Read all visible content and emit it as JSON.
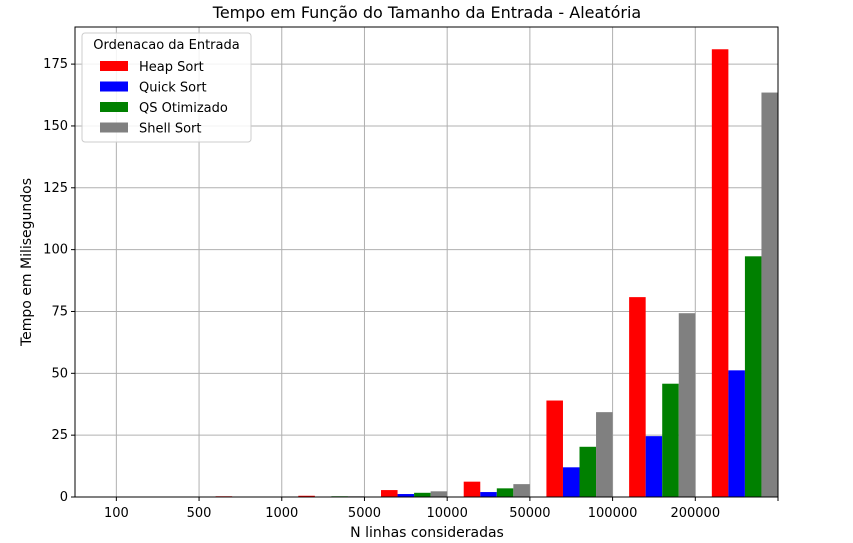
{
  "chart_data": {
    "type": "bar",
    "title": "Tempo em Função do Tamanho da Entrada - Aleatória",
    "xlabel": "N linhas consideradas",
    "ylabel": "Tempo em Milisegundos",
    "categories": [
      "100",
      "500",
      "1000",
      "5000",
      "10000",
      "50000",
      "100000",
      "200000"
    ],
    "ylim": [
      0,
      190
    ],
    "yticks": [
      0,
      25,
      50,
      75,
      100,
      125,
      150,
      175
    ],
    "grid": true,
    "legend": {
      "title": "Ordenacao da Entrada",
      "placement": "top-left"
    },
    "series": [
      {
        "name": "Heap Sort",
        "color": "#ff0000",
        "values": [
          0.05,
          0.3,
          0.5,
          2.8,
          6.2,
          39.0,
          80.8,
          181.0
        ]
      },
      {
        "name": "Quick Sort",
        "color": "#0000ff",
        "values": [
          0.02,
          0.1,
          0.2,
          1.2,
          2.0,
          12.0,
          24.6,
          51.2
        ]
      },
      {
        "name": "QS Otimizado",
        "color": "#008000",
        "values": [
          0.02,
          0.1,
          0.3,
          1.7,
          3.5,
          20.3,
          45.8,
          97.3
        ]
      },
      {
        "name": "Shell Sort",
        "color": "#808080",
        "values": [
          0.02,
          0.1,
          0.3,
          2.3,
          5.2,
          34.3,
          74.3,
          163.5
        ]
      }
    ]
  }
}
